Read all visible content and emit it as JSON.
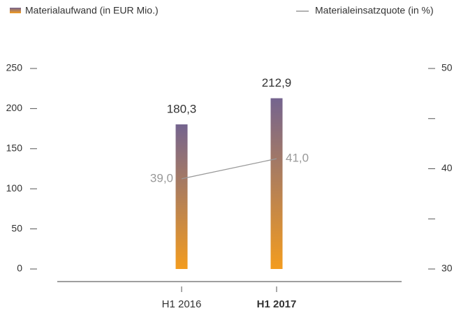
{
  "chart_data": {
    "type": "bar_line",
    "categories": [
      "H1 2016",
      "H1 2017"
    ],
    "series": [
      {
        "name": "Materialaufwand (in EUR Mio.)",
        "type": "bar",
        "colors": [
          "#f39c1f",
          "#74648f"
        ],
        "values": [
          180.3,
          212.9
        ],
        "value_labels": [
          "180,3",
          "212,9"
        ]
      },
      {
        "name": "Materialeinsatzquote (in %)",
        "type": "line",
        "axis": "y2",
        "color": "#999999",
        "values": [
          39.0,
          41.0
        ],
        "value_labels": [
          "39,0",
          "41,0"
        ]
      }
    ],
    "ylim": [
      0,
      250
    ],
    "yticks": [
      0,
      50,
      100,
      150,
      200,
      250
    ],
    "y2lim": [
      30,
      50
    ],
    "y2ticks": [
      30,
      {
        "value": 35,
        "label": null
      },
      40,
      {
        "value": 45,
        "label": null
      },
      50
    ]
  }
}
